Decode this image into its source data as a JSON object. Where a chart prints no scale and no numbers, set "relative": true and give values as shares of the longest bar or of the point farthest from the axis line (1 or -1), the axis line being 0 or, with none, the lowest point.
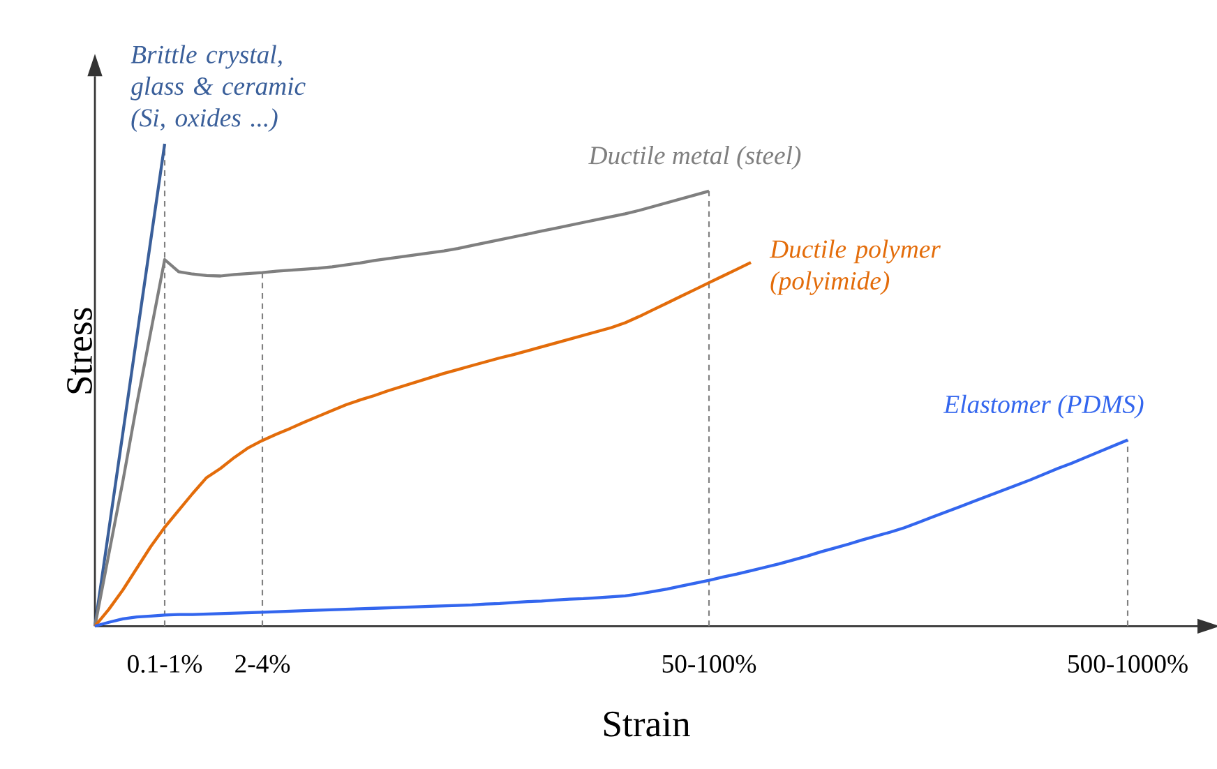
{
  "chart_data": {
    "type": "line",
    "relative": true,
    "xlabel": "Strain",
    "ylabel": "Stress",
    "grid": "x",
    "categories": [
      null,
      null,
      null,
      null,
      null,
      "0.1-1%",
      null,
      null,
      null,
      null,
      null,
      null,
      "2-4%",
      null,
      null,
      null,
      null,
      null,
      null,
      null,
      null,
      null,
      null,
      null,
      null,
      null,
      null,
      null,
      null,
      null,
      null,
      null,
      null,
      null,
      null,
      null,
      null,
      null,
      null,
      null,
      null,
      null,
      null,
      null,
      "50-100%",
      null,
      null,
      null,
      null,
      null,
      null,
      null,
      null,
      null,
      null,
      null,
      null,
      null,
      null,
      null,
      null,
      null,
      null,
      null,
      null,
      null,
      null,
      null,
      null,
      null,
      null,
      null,
      null,
      null,
      "500-1000%",
      null,
      null,
      null,
      null,
      null
    ],
    "series": [
      {
        "name": "Brittle crystal, glass & ceramic (Si, oxides ...)",
        "color": "#3a5f9a",
        "values": [
          0,
          0.2,
          0.4,
          0.6,
          0.8,
          1.0,
          null,
          null,
          null,
          null,
          null,
          null,
          null,
          null,
          null,
          null,
          null,
          null,
          null,
          null,
          null,
          null,
          null,
          null,
          null,
          null,
          null,
          null,
          null,
          null,
          null,
          null,
          null,
          null,
          null,
          null,
          null,
          null,
          null,
          null,
          null,
          null,
          null,
          null,
          null,
          null,
          null,
          null,
          null,
          null,
          null,
          null,
          null,
          null,
          null,
          null,
          null,
          null,
          null,
          null,
          null,
          null,
          null,
          null,
          null,
          null,
          null,
          null,
          null,
          null,
          null,
          null,
          null,
          null,
          null,
          null,
          null,
          null,
          null,
          null
        ]
      },
      {
        "name": "Ductile metal (steel)",
        "color": "#7f7f7f",
        "values": [
          0,
          0.15,
          0.3,
          0.46,
          0.61,
          0.76,
          0.735,
          0.73,
          0.727,
          0.726,
          0.729,
          0.731,
          0.733,
          0.736,
          0.738,
          0.74,
          0.742,
          0.745,
          0.749,
          0.753,
          0.758,
          0.762,
          0.766,
          0.77,
          0.774,
          0.778,
          0.783,
          0.789,
          0.795,
          0.801,
          0.807,
          0.813,
          0.819,
          0.825,
          0.831,
          0.837,
          0.843,
          0.849,
          0.855,
          0.862,
          0.87,
          0.878,
          0.886,
          0.894,
          0.902,
          null,
          null,
          null,
          null,
          null,
          null,
          null,
          null,
          null,
          null,
          null,
          null,
          null,
          null,
          null,
          null,
          null,
          null,
          null,
          null,
          null,
          null,
          null,
          null,
          null,
          null,
          null,
          null,
          null,
          null,
          null,
          null,
          null,
          null,
          null
        ]
      },
      {
        "name": "Ductile polymer (polyimide)",
        "color": "#e36c0a",
        "values": [
          0,
          0.035,
          0.075,
          0.12,
          0.165,
          0.205,
          0.24,
          0.275,
          0.308,
          0.327,
          0.35,
          0.37,
          0.385,
          0.398,
          0.41,
          0.423,
          0.435,
          0.447,
          0.459,
          0.469,
          0.478,
          0.488,
          0.497,
          0.506,
          0.515,
          0.524,
          0.532,
          0.54,
          0.548,
          0.556,
          0.563,
          0.571,
          0.579,
          0.587,
          0.595,
          0.603,
          0.611,
          0.619,
          0.629,
          0.642,
          0.656,
          0.67,
          0.684,
          0.698,
          0.712,
          0.726,
          0.74,
          0.754,
          null,
          null,
          null,
          null,
          null,
          null,
          null,
          null,
          null,
          null,
          null,
          null,
          null,
          null,
          null,
          null,
          null,
          null,
          null,
          null,
          null,
          null,
          null,
          null,
          null,
          null,
          null,
          null,
          null,
          null,
          null,
          null
        ]
      },
      {
        "name": "Elastomer (PDMS)",
        "color": "#3366ee",
        "values": [
          0,
          0.008,
          0.015,
          0.019,
          0.021,
          0.023,
          0.024,
          0.024,
          0.025,
          0.026,
          0.027,
          0.028,
          0.029,
          0.03,
          0.031,
          0.032,
          0.033,
          0.034,
          0.035,
          0.036,
          0.037,
          0.038,
          0.039,
          0.04,
          0.041,
          0.042,
          0.043,
          0.044,
          0.046,
          0.047,
          0.049,
          0.051,
          0.052,
          0.054,
          0.056,
          0.057,
          0.059,
          0.061,
          0.063,
          0.067,
          0.072,
          0.077,
          0.083,
          0.089,
          0.095,
          0.102,
          0.108,
          0.115,
          0.122,
          0.129,
          0.137,
          0.145,
          0.154,
          0.162,
          0.17,
          0.179,
          0.187,
          0.195,
          0.204,
          0.215,
          0.226,
          0.237,
          0.248,
          0.259,
          0.27,
          0.281,
          0.292,
          0.303,
          0.315,
          0.327,
          0.338,
          0.35,
          0.362,
          0.374,
          0.386,
          null,
          null,
          null,
          null,
          null
        ]
      }
    ]
  }
}
